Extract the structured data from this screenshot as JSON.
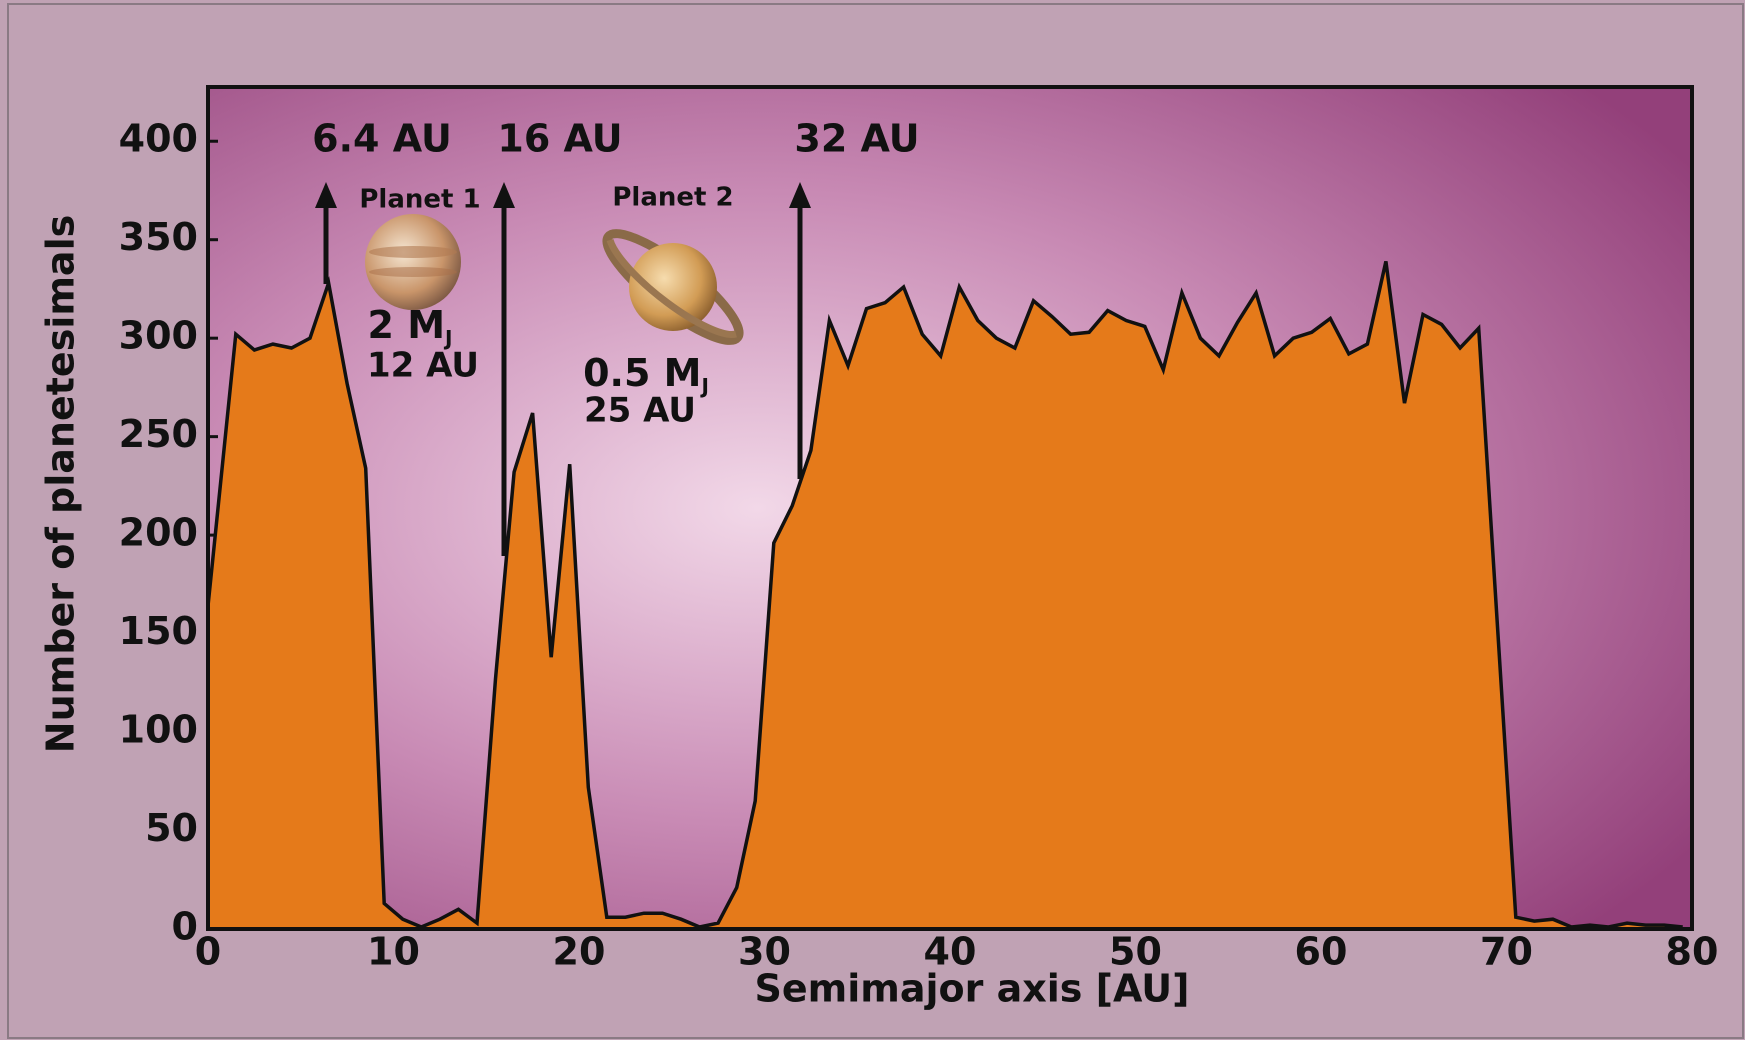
{
  "chart_data": {
    "type": "area",
    "x_label": "Semimajor axis [AU]",
    "y_label": "Number of planetesimals",
    "color": "#e57a1a",
    "x": [
      0,
      1.5,
      2.5,
      3.5,
      4.5,
      5.5,
      6.5,
      7.5,
      8.5,
      9.5,
      10.5,
      11.5,
      12.5,
      13.5,
      14.5,
      15.5,
      16.5,
      17.5,
      18.5,
      19.5,
      20.5,
      21.5,
      22.5,
      23.5,
      24.5,
      25.5,
      26.5,
      27.5,
      28.5,
      29.5,
      30.5,
      31.5,
      32.5,
      33.5,
      34.5,
      35.5,
      36.5,
      37.5,
      38.5,
      39.5,
      40.5,
      41.5,
      42.5,
      43.5,
      44.5,
      45.5,
      46.5,
      47.5,
      48.5,
      49.5,
      50.5,
      51.5,
      52.5,
      53.5,
      54.5,
      55.5,
      56.5,
      57.5,
      58.5,
      59.5,
      60.5,
      61.5,
      62.5,
      63.5,
      64.5,
      65.5,
      66.5,
      67.5,
      68.5,
      70.5,
      71.5,
      72.5,
      73.5,
      74.5,
      75.5,
      76.5,
      77.5,
      78.5,
      79.5
    ],
    "values": [
      164,
      302,
      294,
      297,
      295,
      300,
      328,
      277,
      234,
      13,
      5,
      1,
      5,
      10,
      3,
      127,
      232,
      262,
      138,
      236,
      72,
      6,
      6,
      8,
      8,
      5,
      1,
      3,
      21,
      65,
      196,
      215,
      243,
      309,
      286,
      315,
      318,
      326,
      302,
      291,
      326,
      309,
      300,
      295,
      319,
      311,
      302,
      303,
      314,
      309,
      306,
      284,
      323,
      300,
      291,
      308,
      323,
      291,
      300,
      303,
      310,
      292,
      297,
      339,
      267,
      312,
      307,
      295,
      305,
      6,
      4,
      5,
      1,
      2,
      1,
      3,
      2,
      2,
      1
    ],
    "xlim": [
      0,
      80
    ],
    "xticks": [
      0,
      10,
      20,
      30,
      40,
      50,
      60,
      70,
      80
    ],
    "ylim": [
      0,
      425
    ],
    "yticks": [
      0,
      50,
      100,
      150,
      200,
      250,
      300,
      350,
      400
    ],
    "annotations": [
      "6.4 AU",
      "16 AU",
      "32 AU",
      "Planet 1",
      "Planet 2"
    ],
    "planet1_mass": {
      "text": "2 M",
      "sub": "J"
    },
    "planet1_distance": "12 AU",
    "planet2_mass": {
      "text": "0.5 M",
      "sub": "J"
    },
    "planet2_distance": "25 AU"
  }
}
